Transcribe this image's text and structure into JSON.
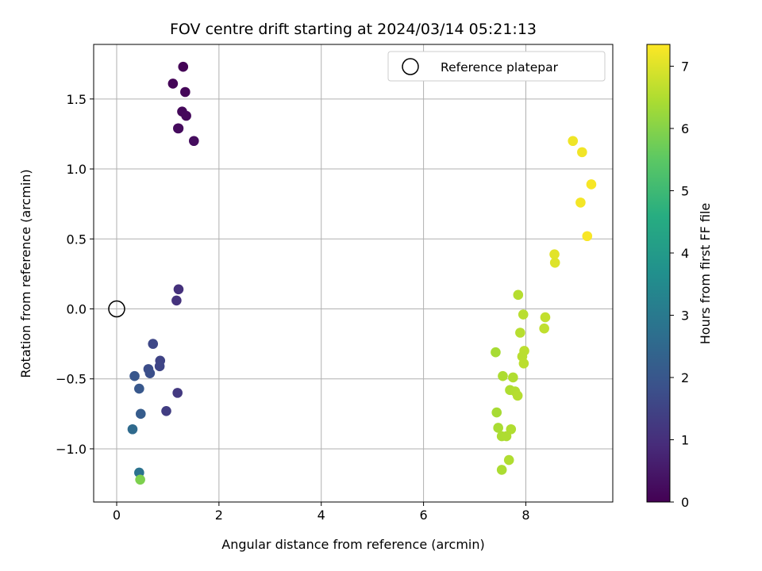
{
  "chart_data": {
    "type": "scatter",
    "title": "FOV centre drift starting at 2024/03/14 05:21:13",
    "xlabel": "Angular distance from reference (arcmin)",
    "ylabel": "Rotation from reference (arcmin)",
    "xlim": [
      -0.45,
      9.7
    ],
    "ylim": [
      -1.38,
      1.89
    ],
    "xticks": [
      0,
      2,
      4,
      6,
      8
    ],
    "yticks": [
      -1.0,
      -0.5,
      0.0,
      0.5,
      1.0,
      1.5
    ],
    "xtick_labels": [
      "0",
      "2",
      "4",
      "6",
      "8"
    ],
    "ytick_labels": [
      "−1.0",
      "−0.5",
      "0.0",
      "0.5",
      "1.0",
      "1.5"
    ],
    "grid": true,
    "colormap": "viridis",
    "colorbar": {
      "label": "Hours from first FF file",
      "range": [
        0,
        7.35
      ],
      "ticks": [
        0,
        1,
        2,
        3,
        4,
        5,
        6,
        7
      ],
      "tick_labels": [
        "0",
        "1",
        "2",
        "3",
        "4",
        "5",
        "6",
        "7"
      ]
    },
    "legend": {
      "position": "top-right",
      "entries": [
        {
          "label": "Reference platepar",
          "marker": "open-circle",
          "color": "#000000"
        }
      ]
    },
    "reference_point": {
      "x": 0,
      "y": 0
    },
    "points": [
      {
        "x": 1.3,
        "y": 1.73,
        "h": 0.05
      },
      {
        "x": 1.1,
        "y": 1.61,
        "h": 0.08
      },
      {
        "x": 1.34,
        "y": 1.55,
        "h": 0.1
      },
      {
        "x": 1.28,
        "y": 1.41,
        "h": 0.15
      },
      {
        "x": 1.36,
        "y": 1.38,
        "h": 0.18
      },
      {
        "x": 1.2,
        "y": 1.29,
        "h": 0.2
      },
      {
        "x": 1.21,
        "y": 1.29,
        "h": 0.22
      },
      {
        "x": 1.51,
        "y": 1.2,
        "h": 0.25
      },
      {
        "x": 1.21,
        "y": 0.14,
        "h": 1.05
      },
      {
        "x": 1.17,
        "y": 0.06,
        "h": 1.1
      },
      {
        "x": 0.71,
        "y": -0.25,
        "h": 1.6
      },
      {
        "x": 0.85,
        "y": -0.37,
        "h": 1.5
      },
      {
        "x": 0.84,
        "y": -0.41,
        "h": 1.55
      },
      {
        "x": 0.62,
        "y": -0.43,
        "h": 1.75
      },
      {
        "x": 0.65,
        "y": -0.46,
        "h": 1.8
      },
      {
        "x": 0.35,
        "y": -0.48,
        "h": 2.0
      },
      {
        "x": 0.44,
        "y": -0.57,
        "h": 2.05
      },
      {
        "x": 1.19,
        "y": -0.6,
        "h": 1.25
      },
      {
        "x": 0.97,
        "y": -0.73,
        "h": 1.35
      },
      {
        "x": 0.47,
        "y": -0.75,
        "h": 2.15
      },
      {
        "x": 0.31,
        "y": -0.86,
        "h": 2.55
      },
      {
        "x": 0.44,
        "y": -1.17,
        "h": 2.8
      },
      {
        "x": 0.46,
        "y": -1.22,
        "h": 5.9
      },
      {
        "x": 8.92,
        "y": 1.2,
        "h": 7.2
      },
      {
        "x": 9.1,
        "y": 1.12,
        "h": 7.22
      },
      {
        "x": 9.28,
        "y": 0.89,
        "h": 7.28
      },
      {
        "x": 9.07,
        "y": 0.76,
        "h": 7.25
      },
      {
        "x": 9.2,
        "y": 0.52,
        "h": 7.3
      },
      {
        "x": 8.56,
        "y": 0.39,
        "h": 7.05
      },
      {
        "x": 8.57,
        "y": 0.33,
        "h": 7.0
      },
      {
        "x": 7.85,
        "y": 0.1,
        "h": 6.55
      },
      {
        "x": 7.95,
        "y": -0.04,
        "h": 6.6
      },
      {
        "x": 8.38,
        "y": -0.06,
        "h": 6.7
      },
      {
        "x": 8.36,
        "y": -0.14,
        "h": 6.68
      },
      {
        "x": 7.89,
        "y": -0.17,
        "h": 6.58
      },
      {
        "x": 7.97,
        "y": -0.3,
        "h": 6.62
      },
      {
        "x": 7.41,
        "y": -0.31,
        "h": 6.4
      },
      {
        "x": 7.93,
        "y": -0.34,
        "h": 6.6
      },
      {
        "x": 7.96,
        "y": -0.39,
        "h": 6.62
      },
      {
        "x": 7.55,
        "y": -0.48,
        "h": 6.45
      },
      {
        "x": 7.75,
        "y": -0.49,
        "h": 6.5
      },
      {
        "x": 7.69,
        "y": -0.58,
        "h": 6.48
      },
      {
        "x": 7.79,
        "y": -0.59,
        "h": 6.52
      },
      {
        "x": 7.84,
        "y": -0.62,
        "h": 6.55
      },
      {
        "x": 7.43,
        "y": -0.74,
        "h": 6.4
      },
      {
        "x": 7.46,
        "y": -0.85,
        "h": 6.42
      },
      {
        "x": 7.71,
        "y": -0.86,
        "h": 6.5
      },
      {
        "x": 7.53,
        "y": -0.91,
        "h": 6.45
      },
      {
        "x": 7.62,
        "y": -0.91,
        "h": 6.47
      },
      {
        "x": 7.67,
        "y": -1.08,
        "h": 6.5
      },
      {
        "x": 7.53,
        "y": -1.15,
        "h": 6.44
      }
    ]
  }
}
